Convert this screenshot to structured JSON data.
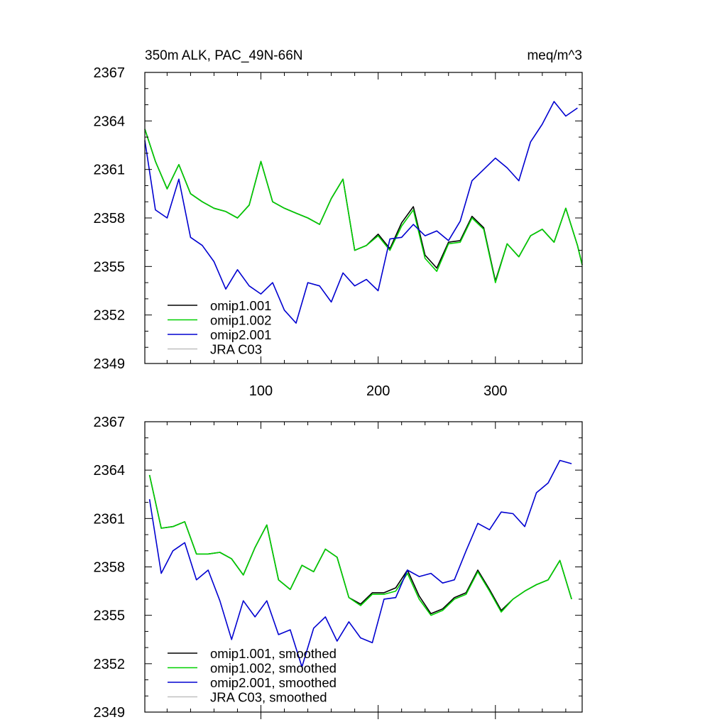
{
  "chart_data": [
    {
      "type": "line",
      "title": "350m ALK, PAC_49N-66N",
      "units": "meq/m^3",
      "xlabel": "",
      "ylabel": "",
      "xlim": [
        1,
        374
      ],
      "ylim": [
        2349,
        2367
      ],
      "xticks": [
        100,
        200,
        300
      ],
      "yticks": [
        2349,
        2352,
        2355,
        2358,
        2361,
        2364,
        2367
      ],
      "grid": false,
      "legend_position": "bottom-left",
      "series": [
        {
          "name": "omip1.001",
          "color": "#000000",
          "x": [
            1,
            10,
            20,
            30,
            40,
            50,
            60,
            70,
            80,
            90,
            100,
            110,
            120,
            130,
            140,
            150,
            160,
            170,
            180,
            190,
            200,
            210,
            220,
            230,
            240,
            250,
            260,
            270,
            280,
            290,
            300,
            310,
            320,
            330,
            340,
            350,
            360,
            370,
            374
          ],
          "values": [
            2363.5,
            2361.5,
            2359.8,
            2361.3,
            2359.5,
            2359.0,
            2358.6,
            2358.4,
            2358.0,
            2358.8,
            2361.5,
            2359.0,
            2358.6,
            2358.3,
            2358.0,
            2357.6,
            2359.2,
            2360.4,
            2356.0,
            2356.3,
            2357.0,
            2356.1,
            2357.7,
            2358.7,
            2355.7,
            2354.9,
            2356.5,
            2356.6,
            2358.1,
            2357.4,
            2354.1,
            2356.4,
            2355.6,
            2356.9,
            2357.3,
            2356.5,
            2358.6,
            2356.3,
            2355.1
          ]
        },
        {
          "name": "omip1.002",
          "color": "#00d000",
          "x": [
            1,
            10,
            20,
            30,
            40,
            50,
            60,
            70,
            80,
            90,
            100,
            110,
            120,
            130,
            140,
            150,
            160,
            170,
            180,
            190,
            200,
            210,
            220,
            230,
            240,
            250,
            260,
            270,
            280,
            290,
            300,
            310,
            320,
            330,
            340,
            350,
            360,
            370,
            374
          ],
          "values": [
            2363.5,
            2361.5,
            2359.8,
            2361.3,
            2359.5,
            2359.0,
            2358.6,
            2358.4,
            2358.0,
            2358.8,
            2361.5,
            2359.0,
            2358.6,
            2358.3,
            2358.0,
            2357.6,
            2359.2,
            2360.4,
            2356.0,
            2356.3,
            2356.9,
            2356.0,
            2357.5,
            2358.5,
            2355.5,
            2354.7,
            2356.4,
            2356.5,
            2358.0,
            2357.3,
            2354.0,
            2356.4,
            2355.6,
            2356.9,
            2357.3,
            2356.5,
            2358.6,
            2356.3,
            2355.1
          ]
        },
        {
          "name": "omip2.001",
          "color": "#0000d0",
          "x": [
            1,
            10,
            20,
            30,
            40,
            50,
            60,
            70,
            80,
            90,
            100,
            110,
            120,
            130,
            140,
            150,
            160,
            170,
            180,
            190,
            200,
            210,
            220,
            230,
            240,
            250,
            260,
            270,
            280,
            290,
            300,
            310,
            320,
            330,
            340,
            350,
            360,
            370
          ],
          "values": [
            2362.8,
            2358.5,
            2358.0,
            2360.4,
            2356.8,
            2356.3,
            2355.3,
            2353.6,
            2354.8,
            2353.8,
            2353.3,
            2354.0,
            2352.3,
            2351.5,
            2354.0,
            2353.8,
            2352.8,
            2354.6,
            2353.8,
            2354.2,
            2353.5,
            2356.7,
            2356.8,
            2357.6,
            2356.9,
            2357.2,
            2356.6,
            2357.8,
            2360.3,
            2361.0,
            2361.7,
            2361.1,
            2360.3,
            2362.7,
            2363.8,
            2365.2,
            2364.3,
            2364.8
          ]
        },
        {
          "name": "JRA C03",
          "color": "#c0c0c0",
          "x": [],
          "values": []
        }
      ]
    },
    {
      "type": "line",
      "title": "",
      "xlabel": "",
      "ylabel": "",
      "xlim": [
        1,
        374
      ],
      "ylim": [
        2349,
        2367
      ],
      "xticks": [
        100,
        200,
        300
      ],
      "yticks": [
        2349,
        2352,
        2355,
        2358,
        2361,
        2364,
        2367
      ],
      "grid": false,
      "legend_position": "bottom-left",
      "series": [
        {
          "name": "omip1.001, smoothed",
          "color": "#000000",
          "x": [
            5,
            15,
            25,
            35,
            45,
            55,
            65,
            75,
            85,
            95,
            105,
            115,
            125,
            135,
            145,
            155,
            165,
            175,
            185,
            195,
            205,
            215,
            225,
            235,
            245,
            255,
            265,
            275,
            285,
            295,
            305,
            315,
            325,
            335,
            345,
            355,
            365
          ],
          "values": [
            2363.7,
            2360.4,
            2360.5,
            2360.8,
            2358.8,
            2358.8,
            2358.9,
            2358.5,
            2357.5,
            2359.2,
            2360.6,
            2357.2,
            2356.6,
            2358.1,
            2357.7,
            2359.1,
            2358.6,
            2356.1,
            2355.7,
            2356.4,
            2356.4,
            2356.7,
            2357.8,
            2356.2,
            2355.1,
            2355.4,
            2356.1,
            2356.4,
            2357.8,
            2356.6,
            2355.3,
            2356.0,
            2356.5,
            2356.9,
            2357.2,
            2358.4,
            2356.0
          ]
        },
        {
          "name": "omip1.002, smoothed",
          "color": "#00d000",
          "x": [
            5,
            15,
            25,
            35,
            45,
            55,
            65,
            75,
            85,
            95,
            105,
            115,
            125,
            135,
            145,
            155,
            165,
            175,
            185,
            195,
            205,
            215,
            225,
            235,
            245,
            255,
            265,
            275,
            285,
            295,
            305,
            315,
            325,
            335,
            345,
            355,
            365
          ],
          "values": [
            2363.7,
            2360.4,
            2360.5,
            2360.8,
            2358.8,
            2358.8,
            2358.9,
            2358.5,
            2357.5,
            2359.2,
            2360.6,
            2357.2,
            2356.6,
            2358.1,
            2357.7,
            2359.1,
            2358.6,
            2356.1,
            2355.6,
            2356.3,
            2356.3,
            2356.5,
            2357.6,
            2356.0,
            2355.0,
            2355.3,
            2356.0,
            2356.3,
            2357.7,
            2356.5,
            2355.2,
            2356.0,
            2356.5,
            2356.9,
            2357.2,
            2358.4,
            2356.0
          ]
        },
        {
          "name": "omip2.001, smoothed",
          "color": "#0000d0",
          "x": [
            5,
            15,
            25,
            35,
            45,
            55,
            65,
            75,
            85,
            95,
            105,
            115,
            125,
            135,
            145,
            155,
            165,
            175,
            185,
            195,
            205,
            215,
            225,
            235,
            245,
            255,
            265,
            275,
            285,
            295,
            305,
            315,
            325,
            335,
            345,
            355,
            365
          ],
          "values": [
            2362.2,
            2357.6,
            2359.0,
            2359.5,
            2357.2,
            2357.8,
            2355.9,
            2353.5,
            2355.9,
            2354.9,
            2355.9,
            2353.8,
            2354.1,
            2351.8,
            2354.2,
            2354.9,
            2353.4,
            2354.6,
            2353.6,
            2353.3,
            2356.0,
            2356.1,
            2357.8,
            2357.4,
            2357.6,
            2357.0,
            2357.2,
            2359.0,
            2360.7,
            2360.3,
            2361.4,
            2361.3,
            2360.5,
            2362.6,
            2363.2,
            2364.6,
            2364.4
          ]
        },
        {
          "name": "JRA C03, smoothed",
          "color": "#c0c0c0",
          "x": [],
          "values": []
        }
      ]
    }
  ]
}
